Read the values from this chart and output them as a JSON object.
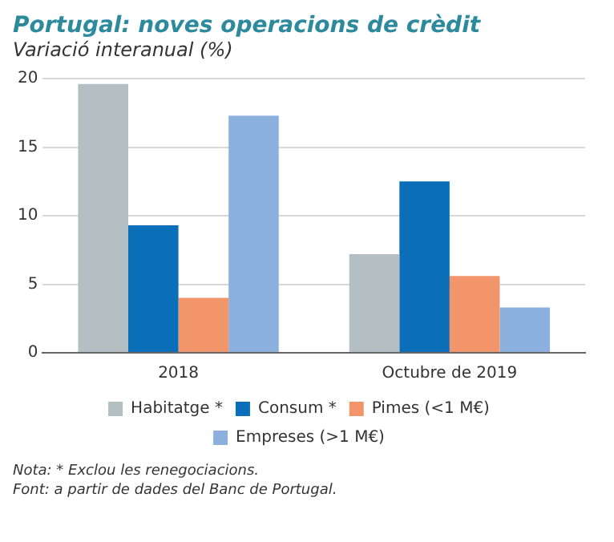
{
  "chart_data": {
    "type": "bar",
    "title": "Portugal: noves operacions de crèdit",
    "subtitle": "Variació interanual (%)",
    "categories": [
      "2018",
      "Octubre de 2019"
    ],
    "series": [
      {
        "name": "Habitatge *",
        "color": "#b3bfc3",
        "values": [
          19.6,
          7.2
        ]
      },
      {
        "name": "Consum *",
        "color": "#0a6fb8",
        "values": [
          9.3,
          12.5
        ]
      },
      {
        "name": "Pimes (<1 M€)",
        "color": "#f2956b",
        "values": [
          4.0,
          5.6
        ]
      },
      {
        "name": "Empreses (>1 M€)",
        "color": "#8cb0de",
        "values": [
          17.3,
          3.3
        ]
      }
    ],
    "ylim": [
      0,
      20
    ],
    "yticks": [
      0,
      5,
      10,
      15,
      20
    ],
    "grid": "y",
    "legend": "bottom",
    "annotations": [
      "Nota: * Exclou les renegociacions.",
      "Font: a partir de dades del Banc de Portugal."
    ]
  }
}
